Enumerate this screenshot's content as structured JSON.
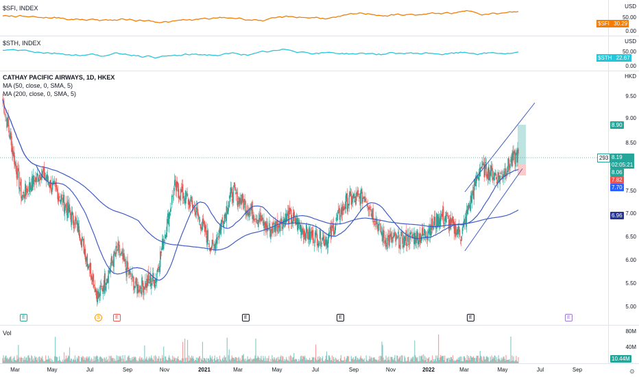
{
  "top_indicators": [
    {
      "name": "$SFI, INDEX",
      "currency": "USD",
      "ticks": [
        "50.00",
        "0.00"
      ],
      "value": "30.29",
      "value_label": "$SFI",
      "color": "#f57c00"
    },
    {
      "name": "$STH, INDEX",
      "currency": "USD",
      "ticks": [
        "50.00",
        "0.00"
      ],
      "value": "22.67",
      "value_label": "$STH",
      "color": "#26c6da"
    }
  ],
  "main": {
    "title": "CATHAY PACIFIC AIRWAYS, 1D, HKEX",
    "ma50_label": "MA (50, close, 0, SMA, 5)",
    "ma200_label": "MA (200, close, 0, SMA, 5)",
    "currency": "HKD",
    "ticks": [
      "9.50",
      "9.00",
      "8.50",
      "8.00",
      "7.50",
      "7.00",
      "6.50",
      "6.00",
      "5.50",
      "5.00"
    ],
    "last_price": "8.19",
    "countdown": "02:05:21",
    "price_left_label": "293",
    "target_price": "8.90",
    "entry_price": "8.06",
    "stop_price": "7.82",
    "lower_label": "7.70",
    "ma_label": "6.96",
    "colors": {
      "up": "#26a69a",
      "down": "#ef5350",
      "ma": "#3f5bc4",
      "blue_label": "#2962ff",
      "ma_label_bg": "#283593"
    }
  },
  "events": [
    "E",
    "S",
    "E",
    "E",
    "E",
    "E",
    "E"
  ],
  "volume": {
    "label": "Vol",
    "ticks": [
      "80M",
      "40M"
    ],
    "value": "10.44M"
  },
  "x_axis": [
    "Mar",
    "May",
    "Jul",
    "Sep",
    "Nov",
    "2021",
    "Mar",
    "May",
    "Jul",
    "Sep",
    "Nov",
    "2022",
    "Mar",
    "May",
    "Jul",
    "Sep"
  ],
  "chart_data": {
    "type": "candlestick",
    "title": "CATHAY PACIFIC AIRWAYS, 1D, HKEX",
    "ylabel": "HKD",
    "ylim": [
      4.85,
      9.75
    ],
    "x": [
      "Mar",
      "May",
      "Jul",
      "Sep",
      "Nov",
      "2021",
      "Mar",
      "May",
      "Jul",
      "Sep",
      "Nov",
      "2022",
      "Mar",
      "May",
      "Jul",
      "Sep"
    ],
    "close_anchors": [
      {
        "x": "Mar 2020",
        "close": 9.3
      },
      {
        "x": "Apr 2020",
        "close": 7.3
      },
      {
        "x": "May 2020",
        "close": 7.8
      },
      {
        "x": "Jun 2020",
        "close": 7.3
      },
      {
        "x": "Jul 2020",
        "close": 6.6
      },
      {
        "x": "Aug 2020",
        "close": 5.2
      },
      {
        "x": "Sep 2020",
        "close": 6.2
      },
      {
        "x": "Oct 2020",
        "close": 5.4
      },
      {
        "x": "Nov 2020",
        "close": 5.6
      },
      {
        "x": "Dec 2020",
        "close": 7.5
      },
      {
        "x": "Jan 2021",
        "close": 7.1
      },
      {
        "x": "Feb 2021",
        "close": 6.2
      },
      {
        "x": "Mar 2021",
        "close": 7.4
      },
      {
        "x": "Apr 2021",
        "close": 7.0
      },
      {
        "x": "May 2021",
        "close": 6.6
      },
      {
        "x": "Jun 2021",
        "close": 6.9
      },
      {
        "x": "Jul 2021",
        "close": 6.5
      },
      {
        "x": "Aug 2021",
        "close": 6.4
      },
      {
        "x": "Sep 2021",
        "close": 7.2
      },
      {
        "x": "Oct 2021",
        "close": 7.3
      },
      {
        "x": "Nov 2021",
        "close": 6.4
      },
      {
        "x": "Dec 2021",
        "close": 6.4
      },
      {
        "x": "Jan 2022",
        "close": 6.5
      },
      {
        "x": "Feb 2022",
        "close": 6.9
      },
      {
        "x": "Mar 2022",
        "close": 6.5
      },
      {
        "x": "Apr 2022",
        "close": 7.9
      },
      {
        "x": "May 2022",
        "close": 7.7
      },
      {
        "x": "Jun 2022",
        "close": 8.19
      }
    ],
    "series": [
      {
        "name": "MA (50, close, 0, SMA, 5)",
        "last": 8.06
      },
      {
        "name": "MA (200, close, 0, SMA, 5)",
        "last": 6.96
      }
    ],
    "last": 8.19,
    "position": {
      "target": 8.9,
      "entry": 8.06,
      "stop": 7.82
    }
  }
}
